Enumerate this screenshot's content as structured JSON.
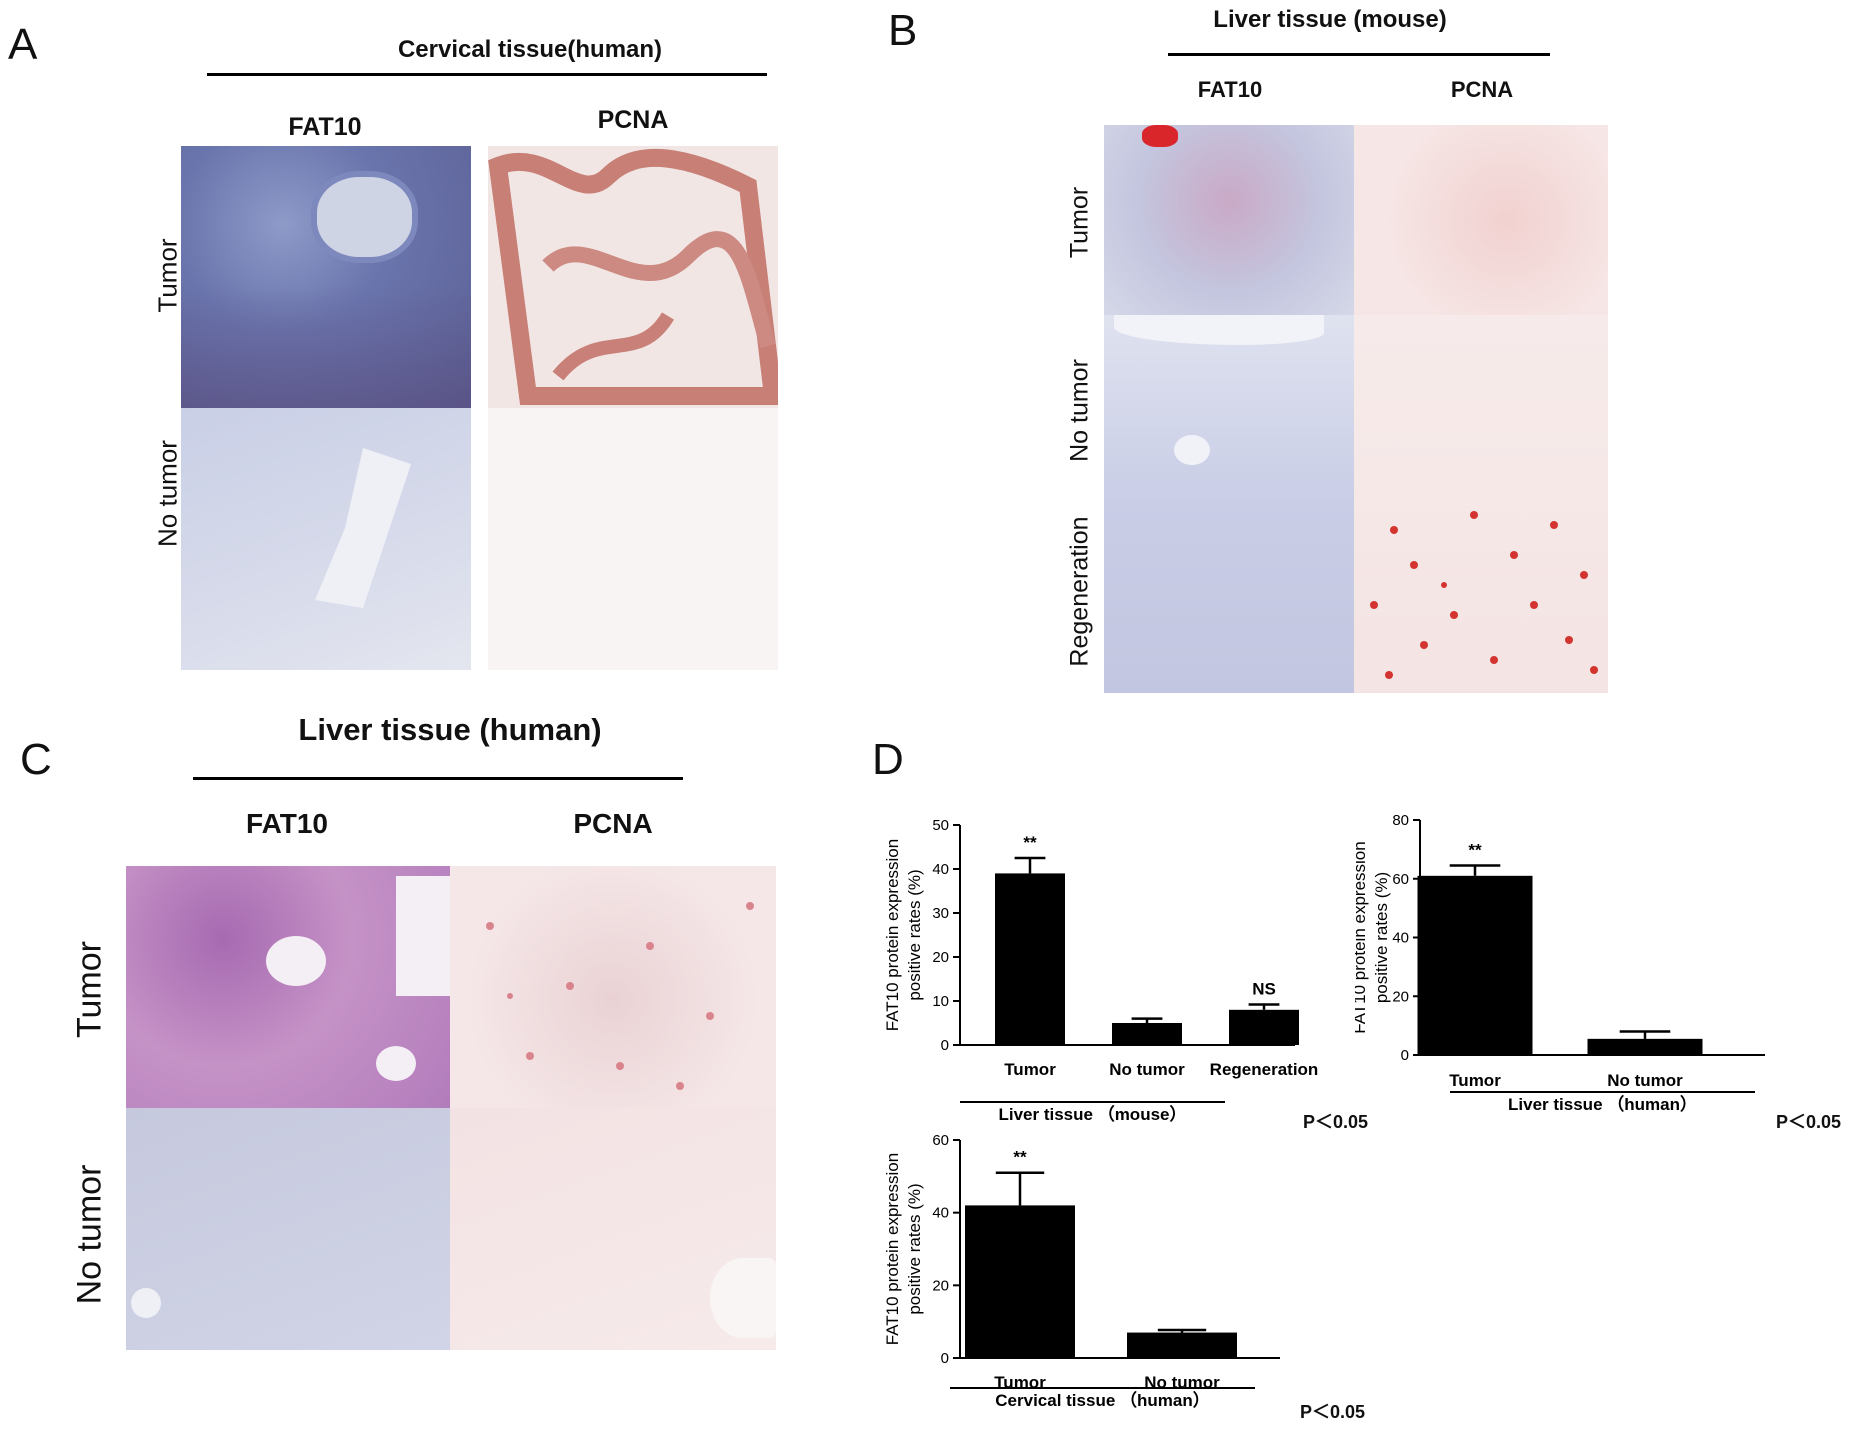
{
  "panels": {
    "A": {
      "letter": "A",
      "title": "Cervical tissue(human)",
      "columns": [
        "FAT10",
        "PCNA"
      ],
      "rows": [
        "Tumor",
        "No  tumor"
      ]
    },
    "B": {
      "letter": "B",
      "title": "Liver tissue (mouse)",
      "columns": [
        "FAT10",
        "PCNA"
      ],
      "rows": [
        "Tumor",
        "No  tumor",
        "Regeneration"
      ]
    },
    "C": {
      "letter": "C",
      "title": "Liver tissue (human)",
      "columns": [
        "FAT10",
        "PCNA"
      ],
      "rows": [
        "Tumor",
        "No tumor"
      ]
    },
    "D": {
      "letter": "D"
    }
  },
  "chart_data": [
    {
      "type": "bar",
      "ylabel": "FAT10 protein expression positive rates (%)",
      "ylabel_lines": [
        "FAT10 protein expression",
        "positive rates (%)"
      ],
      "categories": [
        "Tumor",
        "No tumor",
        "Regeneration"
      ],
      "values": [
        39,
        5,
        8
      ],
      "errors": [
        3.5,
        1,
        1.2
      ],
      "annotations": [
        "**",
        "",
        "NS"
      ],
      "ylim": [
        0,
        50
      ],
      "yticks": [
        0,
        10,
        20,
        30,
        40,
        50
      ],
      "group_label": "Liver tissue （mouse）",
      "pvalue": "P＜0.05"
    },
    {
      "type": "bar",
      "ylabel": "FAT10 protein expression positive rates (%)",
      "ylabel_lines": [
        "FAT10 protein expression",
        "positive rates (%)"
      ],
      "categories": [
        "Tumor",
        "No tumor"
      ],
      "values": [
        61,
        5.5
      ],
      "errors": [
        3.5,
        2.5
      ],
      "annotations": [
        "**",
        ""
      ],
      "ylim": [
        0,
        80
      ],
      "yticks": [
        0,
        20,
        40,
        60,
        80
      ],
      "group_label": "Liver tissue （human）",
      "pvalue": "P＜0.05"
    },
    {
      "type": "bar",
      "ylabel": "FAT10 protein expression positive rates (%)",
      "ylabel_lines": [
        "FAT10 protein expression",
        "positive rates (%)"
      ],
      "categories": [
        "Tumor",
        "No tumor"
      ],
      "values": [
        42,
        7
      ],
      "errors": [
        9,
        0.7
      ],
      "annotations": [
        "**",
        ""
      ],
      "ylim": [
        0,
        60
      ],
      "yticks": [
        0,
        20,
        40,
        60
      ],
      "group_label": "Cervical tissue （human）",
      "pvalue": "P＜0.05"
    }
  ]
}
